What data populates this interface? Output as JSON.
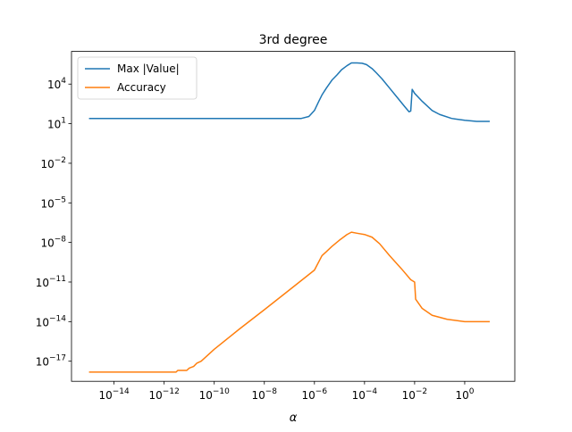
{
  "chart_data": {
    "type": "line",
    "title": "3rd degree",
    "xlabel": "α",
    "ylabel": "",
    "x_scale": "log",
    "y_scale": "log",
    "xlim": [
      2e-16,
      100.0
    ],
    "ylim": [
      3e-19,
      3000000.0
    ],
    "grid": false,
    "legend_position": "top-left",
    "x_ticks": [
      {
        "value": 1e-14,
        "base": "10",
        "exp": "−14"
      },
      {
        "value": 1e-12,
        "base": "10",
        "exp": "−12"
      },
      {
        "value": 1e-10,
        "base": "10",
        "exp": "−10"
      },
      {
        "value": 1e-08,
        "base": "10",
        "exp": "−8"
      },
      {
        "value": 1e-06,
        "base": "10",
        "exp": "−6"
      },
      {
        "value": 0.0001,
        "base": "10",
        "exp": "−4"
      },
      {
        "value": 0.01,
        "base": "10",
        "exp": "−2"
      },
      {
        "value": 1,
        "base": "10",
        "exp": "0"
      }
    ],
    "y_ticks": [
      {
        "value": 10000.0,
        "base": "10",
        "exp": "4"
      },
      {
        "value": 10.0,
        "base": "10",
        "exp": "1"
      },
      {
        "value": 0.01,
        "base": "10",
        "exp": "−2"
      },
      {
        "value": 1e-05,
        "base": "10",
        "exp": "−5"
      },
      {
        "value": 1e-08,
        "base": "10",
        "exp": "−8"
      },
      {
        "value": 1e-11,
        "base": "10",
        "exp": "−11"
      },
      {
        "value": 1e-14,
        "base": "10",
        "exp": "−14"
      },
      {
        "value": 1e-17,
        "base": "10",
        "exp": "−17"
      }
    ],
    "series": [
      {
        "name": "Max |Value|",
        "color": "#1f77b4",
        "points": [
          [
            1e-15,
            25
          ],
          [
            1e-13,
            25
          ],
          [
            1e-11,
            25
          ],
          [
            1e-09,
            25
          ],
          [
            1e-07,
            25
          ],
          [
            3e-07,
            25
          ],
          [
            6e-07,
            35
          ],
          [
            1e-06,
            100
          ],
          [
            1.5e-06,
            500
          ],
          [
            2e-06,
            1500
          ],
          [
            3e-06,
            5000
          ],
          [
            5e-06,
            20000
          ],
          [
            8e-06,
            50000
          ],
          [
            1.2e-05,
            120000
          ],
          [
            2e-05,
            250000
          ],
          [
            3e-05,
            400000
          ],
          [
            5e-05,
            400000
          ],
          [
            8e-05,
            380000
          ],
          [
            0.00012,
            300000
          ],
          [
            0.0002,
            150000
          ],
          [
            0.0003,
            70000
          ],
          [
            0.0005,
            25000
          ],
          [
            0.001,
            5000
          ],
          [
            0.002,
            1000
          ],
          [
            0.004,
            200
          ],
          [
            0.006,
            80
          ],
          [
            0.007,
            90
          ],
          [
            0.008,
            4000
          ],
          [
            0.01,
            2000
          ],
          [
            0.02,
            500
          ],
          [
            0.05,
            100
          ],
          [
            0.1,
            50
          ],
          [
            0.3,
            25
          ],
          [
            1,
            18
          ],
          [
            3,
            15
          ],
          [
            10,
            15
          ]
        ]
      },
      {
        "name": "Accuracy",
        "color": "#ff7f0e",
        "points": [
          [
            1e-15,
            1.5e-18
          ],
          [
            1e-13,
            1.5e-18
          ],
          [
            3e-12,
            1.5e-18
          ],
          [
            3.5e-12,
            2e-18
          ],
          [
            5e-12,
            2e-18
          ],
          [
            8e-12,
            2e-18
          ],
          [
            1e-11,
            3e-18
          ],
          [
            1.5e-11,
            4e-18
          ],
          [
            2e-11,
            7e-18
          ],
          [
            3e-11,
            1e-17
          ],
          [
            1e-10,
            8e-17
          ],
          [
            1e-09,
            2.7e-15
          ],
          [
            1e-08,
            8e-14
          ],
          [
            1e-07,
            2.5e-12
          ],
          [
            1e-06,
            8e-11
          ],
          [
            2e-06,
            1e-09
          ],
          [
            3e-06,
            2e-09
          ],
          [
            5e-06,
            5e-09
          ],
          [
            1e-05,
            1.5e-08
          ],
          [
            2e-05,
            4e-08
          ],
          [
            3e-05,
            6e-08
          ],
          [
            5e-05,
            5e-08
          ],
          [
            0.0001,
            4e-08
          ],
          [
            0.0002,
            2.5e-08
          ],
          [
            0.0004,
            8e-09
          ],
          [
            0.001,
            1e-09
          ],
          [
            0.003,
            1e-10
          ],
          [
            0.007,
            1.5e-11
          ],
          [
            0.01,
            1e-11
          ],
          [
            0.011,
            5e-13
          ],
          [
            0.02,
            1e-13
          ],
          [
            0.05,
            3e-14
          ],
          [
            0.2,
            1.5e-14
          ],
          [
            1,
            1e-14
          ],
          [
            10,
            1e-14
          ]
        ]
      }
    ]
  }
}
